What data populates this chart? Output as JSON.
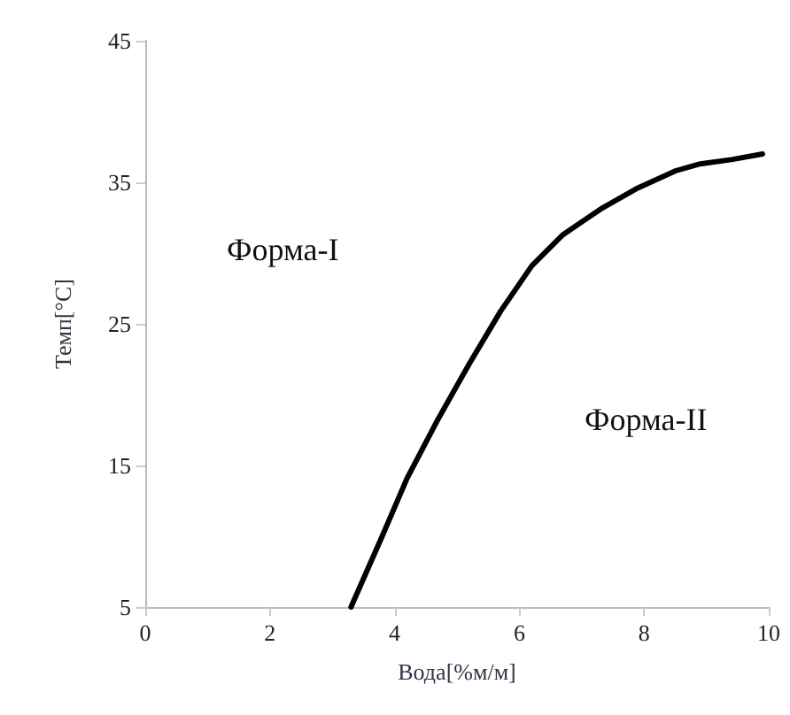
{
  "chart_data": {
    "type": "line",
    "xlabel": "Вода[%м/м]",
    "ylabel": "Темп[°C]",
    "annotations": [
      "Форма-I",
      "Форма-II"
    ],
    "series": [
      {
        "color": "#000000",
        "x": [
          3.3,
          3.8,
          4.2,
          4.7,
          5.2,
          5.7,
          6.2,
          6.7,
          7.3,
          7.9,
          8.5,
          8.9,
          9.4,
          9.9
        ],
        "values": [
          5,
          10,
          14.1,
          18.3,
          22.2,
          25.9,
          29.1,
          31.3,
          33.1,
          34.6,
          35.8,
          36.3,
          36.6,
          37
        ]
      }
    ],
    "xlim": [
      0,
      10
    ],
    "xticks": [
      0,
      2,
      4,
      6,
      8,
      10
    ],
    "ylim": [
      5,
      45
    ],
    "yticks": [
      5,
      15,
      25,
      35,
      45
    ],
    "grid": false,
    "marker": "none",
    "line_style": "solid"
  }
}
